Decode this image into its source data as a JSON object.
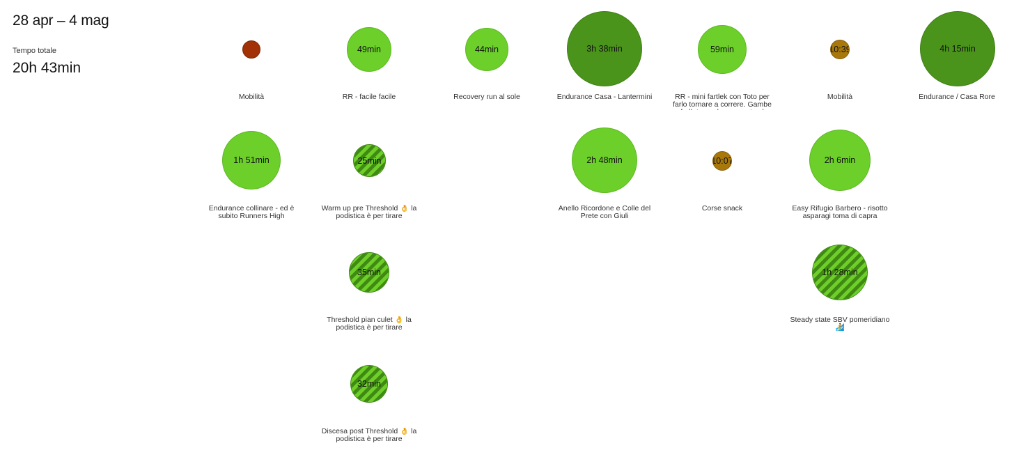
{
  "header": {
    "week_title": "28 apr – 4 mag",
    "total_label": "Tempo totale",
    "total_value": "20h 43min"
  },
  "colors": {
    "easy_green": "#6ccf2a",
    "long_green": "#4b941b",
    "mobility_red": "#a23106",
    "strength_gold": "#a8780b",
    "stripe_dark": "#3f8a13",
    "stripe_light": "#6fcf29"
  },
  "days": [
    {
      "activities": [
        {
          "duration": "",
          "title": "Mobilità",
          "type": "mobility"
        },
        {
          "duration": "1h 51min",
          "title": "Endurance collinare - ed è subito Runners High",
          "type": "easy"
        }
      ]
    },
    {
      "activities": [
        {
          "duration": "49min",
          "title": "RR - facile facile",
          "type": "easy"
        },
        {
          "duration": "25min",
          "title": "Warm up pre Threshold 👌 la podistica è per tirare",
          "type": "striped"
        },
        {
          "duration": "35min",
          "title": "Threshold pian culet 👌 la podistica è per tirare",
          "type": "striped"
        },
        {
          "duration": "32min",
          "title": "Discesa post Threshold 👌 la podistica è per tirare",
          "type": "striped"
        }
      ]
    },
    {
      "activities": [
        {
          "duration": "44min",
          "title": "Recovery run al sole",
          "type": "easy"
        }
      ]
    },
    {
      "activities": [
        {
          "duration": "3h 38min",
          "title": "Endurance Casa - Lantermini",
          "type": "long"
        },
        {
          "duration": "2h 48min",
          "title": "Anello Ricordone e Colle del Prete con Giuli",
          "type": "easy"
        }
      ]
    },
    {
      "activities": [
        {
          "duration": "59min",
          "title": "RR - mini fartlek con Toto per farlo tornare a correre. Gambe frollate per bene pronte al",
          "type": "easy"
        },
        {
          "duration": "10:07",
          "title": "Corse snack",
          "type": "strength"
        }
      ]
    },
    {
      "activities": [
        {
          "duration": "10:39",
          "title": "Mobilità",
          "type": "strength"
        },
        {
          "duration": "2h 6min",
          "title": "Easy Rifugio Barbero - risotto asparagi toma di capra",
          "type": "easy"
        },
        {
          "duration": "1h 28min",
          "title": "Steady state SBV pomeridiano 🏄",
          "type": "striped"
        }
      ]
    },
    {
      "activities": [
        {
          "duration": "4h 15min",
          "title": "Endurance / Casa Rore",
          "type": "long"
        }
      ]
    }
  ]
}
